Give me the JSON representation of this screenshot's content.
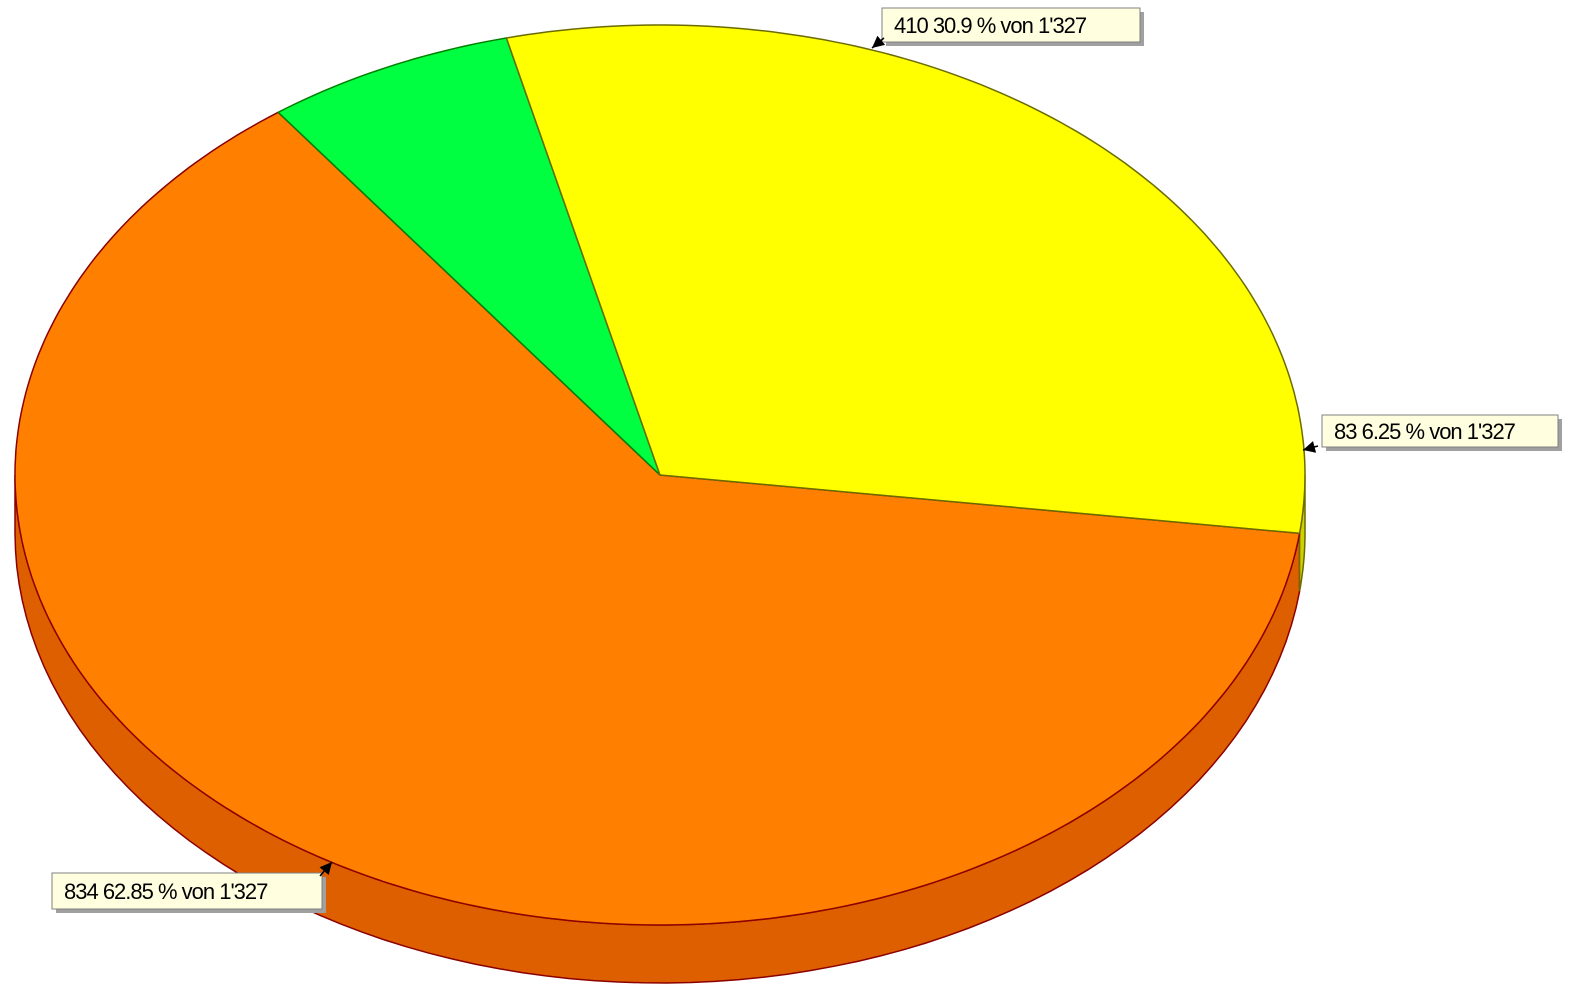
{
  "chart_data": {
    "type": "pie",
    "style": "3d",
    "title": "",
    "total": 1327,
    "slices": [
      {
        "value": 834,
        "percent": 62.85,
        "label": "834 62.85 % von 1'327",
        "color": "#ff8000",
        "side_color": "#de5f00",
        "edge_color": "#8b0000"
      },
      {
        "value": 83,
        "percent": 6.25,
        "label": "83 6.25 % von 1'327",
        "color": "#00ff40",
        "side_color": "#00c030",
        "edge_color": "#008000"
      },
      {
        "value": 410,
        "percent": 30.9,
        "label": "410 30.9 % von 1'327",
        "color": "#ffff00",
        "side_color": "#d0d000",
        "edge_color": "#6b6b00"
      }
    ],
    "label_box_fill": "#ffffe0"
  }
}
